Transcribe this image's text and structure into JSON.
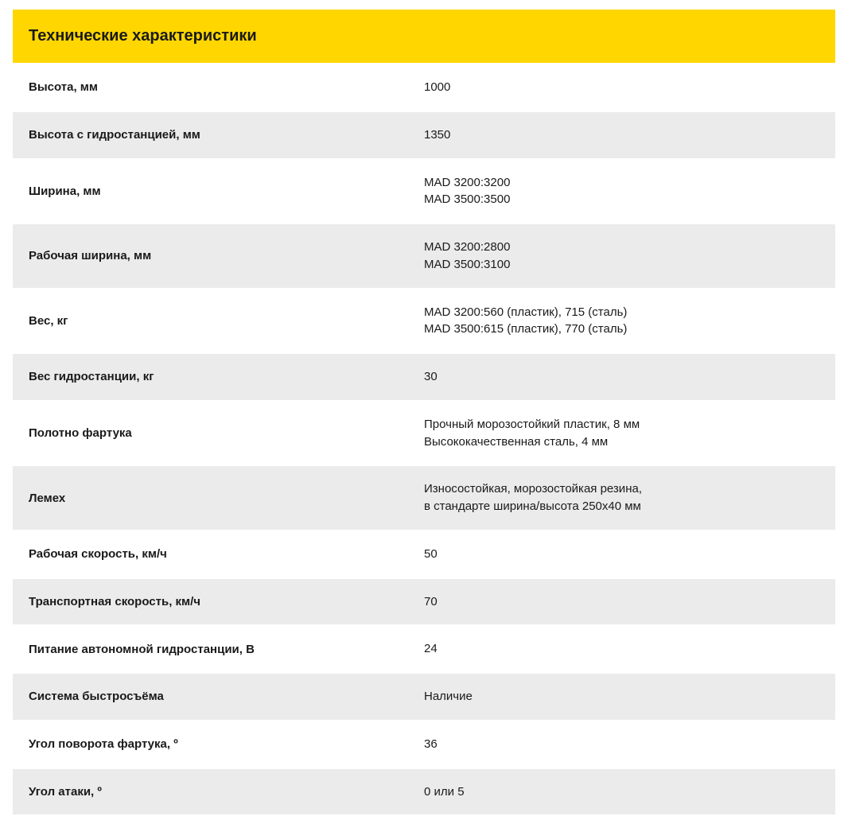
{
  "table": {
    "title": "Технические характеристики",
    "header_bg": "#ffd600",
    "row_bg_odd": "#ffffff",
    "row_bg_even": "#ebebeb",
    "text_color": "#1a1a1a",
    "label_fontweight": 700,
    "value_fontweight": 400,
    "title_fontsize": 20,
    "row_fontsize": 15,
    "rows": [
      {
        "label": "Высота, мм",
        "value": "1000"
      },
      {
        "label": "Высота с гидростанцией, мм",
        "value": "1350"
      },
      {
        "label": "Ширина, мм",
        "value": "MAD 3200:3200\nMAD 3500:3500"
      },
      {
        "label": "Рабочая ширина, мм",
        "value": "MAD 3200:2800\nMAD 3500:3100"
      },
      {
        "label": "Вес, кг",
        "value": "MAD 3200:560 (пластик), 715 (сталь)\nMAD 3500:615 (пластик), 770 (сталь)"
      },
      {
        "label": "Вес гидростанции, кг",
        "value": "30"
      },
      {
        "label": "Полотно фартука",
        "value": "Прочный морозостойкий пластик, 8 мм\nВысококачественная сталь, 4 мм"
      },
      {
        "label": "Лемех",
        "value": "Износостойкая, морозостойкая резина,\nв стандарте ширина/высота 250х40 мм"
      },
      {
        "label": "Рабочая скорость, км/ч",
        "value": "50"
      },
      {
        "label": "Транспортная скорость, км/ч",
        "value": "70"
      },
      {
        "label": "Питание автономной гидростанции, В",
        "value": "24"
      },
      {
        "label": "Система быстросъёма",
        "value": "Наличие"
      },
      {
        "label": "Угол поворота фартука, º",
        "value": "36"
      },
      {
        "label": "Угол  атаки, º",
        "value": "0 или 5"
      }
    ]
  }
}
